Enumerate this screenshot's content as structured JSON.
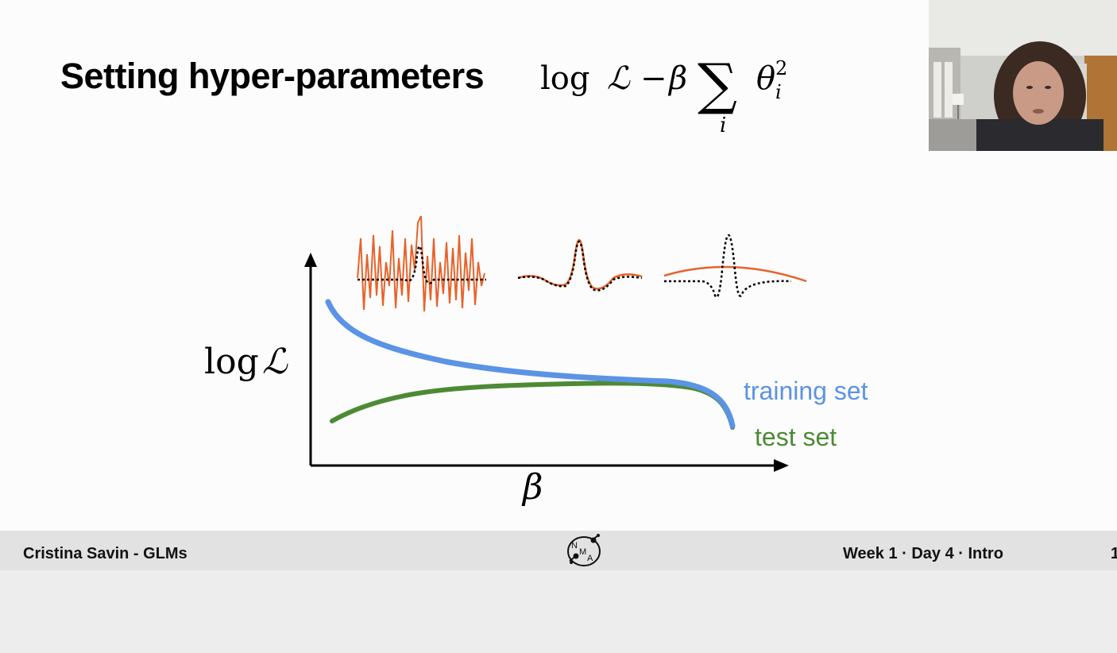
{
  "slide": {
    "title": "Setting hyper-parameters",
    "formula": {
      "log": "log",
      "likelihood": "ℒ",
      "minus": "−",
      "beta": "β",
      "sum": "∑",
      "theta": "θ",
      "sub": "i",
      "sup": "2",
      "index": "i"
    },
    "graph": {
      "y_label_log": "log",
      "y_label_L": "ℒ",
      "x_label": "β",
      "training_label": "training set",
      "test_label": "test set"
    }
  },
  "colors": {
    "training": "#5b93e6",
    "test": "#4d8a35",
    "fit": "#e8622a",
    "footer_bg": "#e2e2e2"
  },
  "footer": {
    "left": "Cristina Savin - GLMs",
    "right": "Week 1 · Day 4 · Intro",
    "page": "1",
    "logo_letters": [
      "N",
      "M",
      "A"
    ]
  }
}
